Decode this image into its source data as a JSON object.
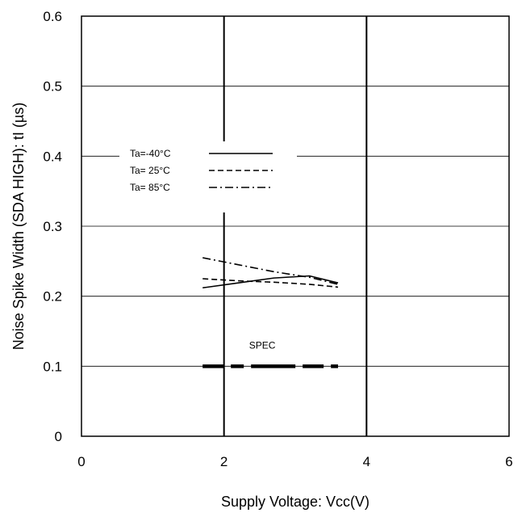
{
  "chart_data": {
    "type": "line",
    "xlabel": "Supply Voltage: Vcc(V)",
    "ylabel": "Noise Spike Width (SDA HIGH): tI (µs)",
    "xlim": [
      0,
      6
    ],
    "ylim": [
      0,
      0.6
    ],
    "x_ticks": [
      "0",
      "2",
      "4",
      "6"
    ],
    "y_ticks": [
      "0",
      "0.1",
      "0.2",
      "0.3",
      "0.4",
      "0.5",
      "0.6"
    ],
    "grid": "horizontal lines at each y tick; vertical lines at x = 2 and x = 4",
    "legend_position": "upper-left inside plot",
    "series": [
      {
        "name": "Ta=-40°C",
        "style": "solid",
        "x": [
          1.7,
          2.2,
          2.7,
          3.2,
          3.6
        ],
        "y": [
          0.212,
          0.219,
          0.226,
          0.229,
          0.219
        ]
      },
      {
        "name": "Ta= 25°C",
        "style": "dashed",
        "x": [
          1.7,
          2.2,
          2.7,
          3.2,
          3.6
        ],
        "y": [
          0.225,
          0.222,
          0.22,
          0.217,
          0.213
        ]
      },
      {
        "name": "Ta= 85°C",
        "style": "dashdot",
        "x": [
          1.7,
          2.2,
          2.7,
          3.2,
          3.6
        ],
        "y": [
          0.255,
          0.245,
          0.235,
          0.227,
          0.217
        ]
      }
    ],
    "annotations": [
      {
        "text": "SPEC",
        "style": "thick-dashed",
        "x": [
          1.7,
          3.6
        ],
        "y": 0.1
      }
    ]
  }
}
